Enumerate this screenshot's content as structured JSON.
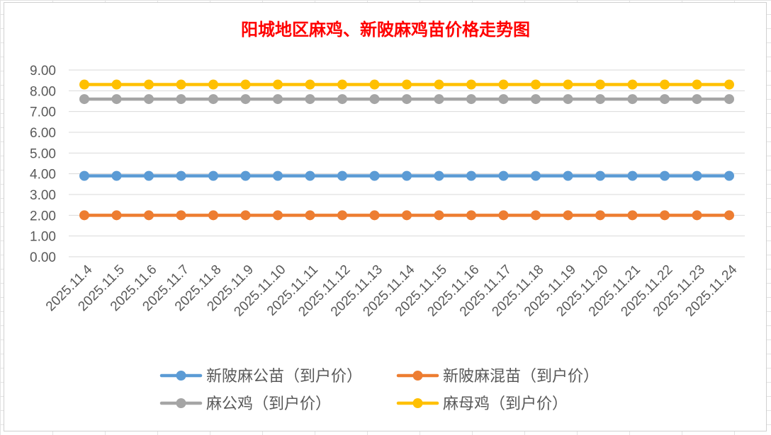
{
  "chart_data": {
    "type": "line",
    "title": "阳城地区麻鸡、新陂麻鸡苗价格走势图",
    "xlabel": "",
    "ylabel": "",
    "ylim": [
      0,
      9
    ],
    "ytick_step": 1,
    "yticks": [
      "0.00",
      "1.00",
      "2.00",
      "3.00",
      "4.00",
      "5.00",
      "6.00",
      "7.00",
      "8.00",
      "9.00"
    ],
    "grid": true,
    "legend_position": "bottom",
    "categories": [
      "2025.11.4",
      "2025.11.5",
      "2025.11.6",
      "2025.11.7",
      "2025.11.8",
      "2025.11.9",
      "2025.11.10",
      "2025.11.11",
      "2025.11.12",
      "2025.11.13",
      "2025.11.14",
      "2025.11.15",
      "2025.11.16",
      "2025.11.17",
      "2025.11.18",
      "2025.11.19",
      "2025.11.20",
      "2025.11.21",
      "2025.11.22",
      "2025.11.23",
      "2025.11.24"
    ],
    "series": [
      {
        "name": "新陂麻公苗（到户价）",
        "color": "#5b9bd5",
        "values": [
          3.9,
          3.9,
          3.9,
          3.9,
          3.9,
          3.9,
          3.9,
          3.9,
          3.9,
          3.9,
          3.9,
          3.9,
          3.9,
          3.9,
          3.9,
          3.9,
          3.9,
          3.9,
          3.9,
          3.9,
          3.9
        ]
      },
      {
        "name": "新陂麻混苗（到户价）",
        "color": "#ed7d31",
        "values": [
          2.0,
          2.0,
          2.0,
          2.0,
          2.0,
          2.0,
          2.0,
          2.0,
          2.0,
          2.0,
          2.0,
          2.0,
          2.0,
          2.0,
          2.0,
          2.0,
          2.0,
          2.0,
          2.0,
          2.0,
          2.0
        ]
      },
      {
        "name": "麻公鸡（到户价）",
        "color": "#a5a5a5",
        "values": [
          7.6,
          7.6,
          7.6,
          7.6,
          7.6,
          7.6,
          7.6,
          7.6,
          7.6,
          7.6,
          7.6,
          7.6,
          7.6,
          7.6,
          7.6,
          7.6,
          7.6,
          7.6,
          7.6,
          7.6,
          7.6
        ]
      },
      {
        "name": "麻母鸡（到户价）",
        "color": "#ffc000",
        "values": [
          8.3,
          8.3,
          8.3,
          8.3,
          8.3,
          8.3,
          8.3,
          8.3,
          8.3,
          8.3,
          8.3,
          8.3,
          8.3,
          8.3,
          8.3,
          8.3,
          8.3,
          8.3,
          8.3,
          8.3,
          8.3
        ]
      }
    ],
    "title_color": "#ff0000",
    "gridline_color": "#d9d9d9",
    "tick_label_color": "#595959"
  }
}
